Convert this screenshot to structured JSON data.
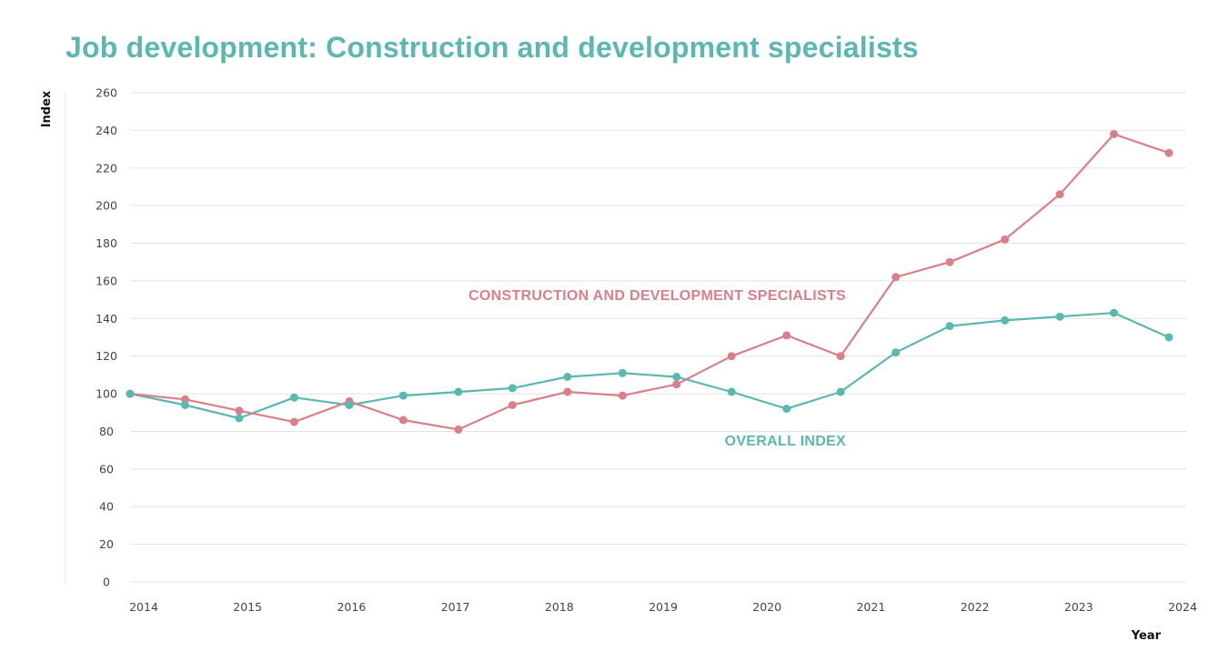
{
  "title": "Job development: Construction and development specialists",
  "chart_data": {
    "type": "line",
    "title": "Job development: Construction and development specialists",
    "xlabel": "Year",
    "ylabel": "Index",
    "ylim": [
      0,
      260
    ],
    "yticks": [
      0,
      20,
      40,
      60,
      80,
      100,
      120,
      140,
      160,
      180,
      200,
      220,
      240,
      260
    ],
    "xlim": [
      2014,
      2024
    ],
    "xticks": [
      "2014",
      "2015",
      "2016",
      "2017",
      "2018",
      "2019",
      "2020",
      "2021",
      "2022",
      "2023",
      "2024"
    ],
    "grid": true,
    "legend": "inline-labels",
    "x": [
      2014.0,
      2014.53,
      2015.05,
      2015.58,
      2016.11,
      2016.63,
      2017.16,
      2017.68,
      2018.21,
      2018.74,
      2019.26,
      2019.79,
      2020.32,
      2020.84,
      2021.37,
      2021.89,
      2022.42,
      2022.95,
      2023.47,
      2024.0
    ],
    "series": [
      {
        "name": "CONSTRUCTION AND DEVELOPMENT SPECIALISTS",
        "color": "#d97f87",
        "values": [
          100,
          97,
          91,
          85,
          96,
          86,
          81,
          94,
          101,
          99,
          105,
          120,
          131,
          120,
          162,
          170,
          182,
          206,
          238,
          228
        ]
      },
      {
        "name": "OVERALL INDEX",
        "color": "#5bb8b0",
        "values": [
          100,
          94,
          87,
          98,
          94,
          99,
          101,
          103,
          109,
          111,
          109,
          101,
          92,
          101,
          122,
          136,
          139,
          141,
          143,
          130
        ]
      }
    ]
  }
}
